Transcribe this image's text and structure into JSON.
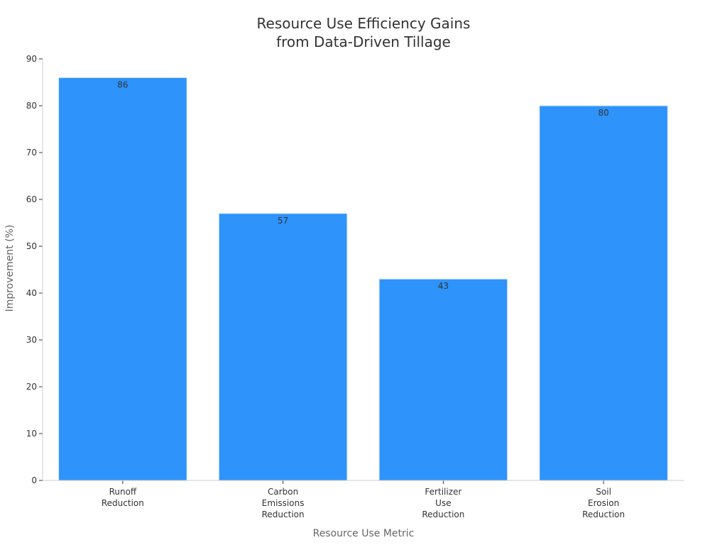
{
  "chart_data": {
    "type": "bar",
    "title_lines": [
      "Resource Use Efficiency Gains",
      "from Data-Driven Tillage"
    ],
    "xlabel": "Resource Use Metric",
    "ylabel": "Improvement (%)",
    "categories": [
      [
        "Runoff",
        "Reduction"
      ],
      [
        "Carbon",
        "Emissions",
        "Reduction"
      ],
      [
        "Fertilizer",
        "Use",
        "Reduction"
      ],
      [
        "Soil",
        "Erosion",
        "Reduction"
      ]
    ],
    "values": [
      86,
      57,
      43,
      80
    ],
    "ylim": [
      0,
      90
    ],
    "yticks": [
      0,
      10,
      20,
      30,
      40,
      50,
      60,
      70,
      80,
      90
    ],
    "grid": false,
    "bar_color": "#2e93fa",
    "bar_edge_color": "#d6e9fe"
  }
}
